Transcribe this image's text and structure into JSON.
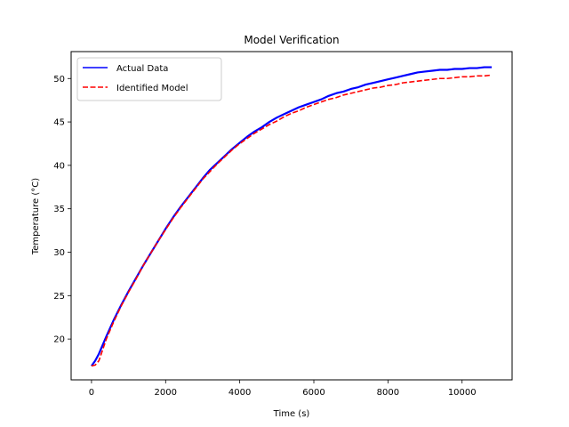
{
  "chart_data": {
    "type": "line",
    "title": "Model Verification",
    "xlabel": "Time (s)",
    "ylabel": "Temperature (°C)",
    "xlim": [
      -550,
      11350
    ],
    "ylim": [
      15.3,
      53.1
    ],
    "xticks": [
      0,
      2000,
      4000,
      6000,
      8000,
      10000
    ],
    "yticks": [
      20,
      25,
      30,
      35,
      40,
      45,
      50
    ],
    "grid": false,
    "legend_position": "top-left",
    "series": [
      {
        "name": "Actual Data",
        "color": "#0000ff",
        "style": "solid",
        "x": [
          0,
          100,
          200,
          400,
          600,
          800,
          1000,
          1200,
          1400,
          1600,
          1800,
          2000,
          2200,
          2400,
          2600,
          2800,
          3000,
          3200,
          3400,
          3600,
          3800,
          4000,
          4200,
          4400,
          4600,
          4800,
          5000,
          5200,
          5400,
          5600,
          5800,
          6000,
          6200,
          6400,
          6600,
          6800,
          7000,
          7200,
          7400,
          7600,
          7800,
          8000,
          8200,
          8400,
          8600,
          8800,
          9000,
          9200,
          9400,
          9600,
          9800,
          10000,
          10200,
          10400,
          10600,
          10800
        ],
        "y": [
          16.9,
          17.5,
          18.3,
          20.3,
          22.2,
          23.9,
          25.5,
          27.0,
          28.5,
          29.9,
          31.3,
          32.7,
          34.0,
          35.2,
          36.3,
          37.4,
          38.5,
          39.5,
          40.3,
          41.1,
          41.9,
          42.6,
          43.3,
          43.9,
          44.4,
          45.0,
          45.5,
          45.9,
          46.3,
          46.7,
          47.0,
          47.3,
          47.6,
          48.0,
          48.3,
          48.5,
          48.8,
          49.0,
          49.3,
          49.5,
          49.7,
          49.9,
          50.1,
          50.3,
          50.5,
          50.7,
          50.8,
          50.9,
          51.0,
          51.0,
          51.1,
          51.1,
          51.2,
          51.2,
          51.3,
          51.3
        ]
      },
      {
        "name": "Identified Model",
        "color": "#ff0000",
        "style": "dashed",
        "x": [
          0,
          100,
          200,
          400,
          600,
          800,
          1000,
          1200,
          1400,
          1600,
          1800,
          2000,
          2200,
          2400,
          2600,
          2800,
          3000,
          3200,
          3400,
          3600,
          3800,
          4000,
          4200,
          4400,
          4600,
          4800,
          5000,
          5200,
          5400,
          5600,
          5800,
          6000,
          6200,
          6400,
          6600,
          6800,
          7000,
          7200,
          7400,
          7600,
          7800,
          8000,
          8200,
          8400,
          8600,
          8800,
          9000,
          9200,
          9400,
          9600,
          9800,
          10000,
          10200,
          10400,
          10600,
          10800
        ],
        "y": [
          16.9,
          17.0,
          17.5,
          20.0,
          22.0,
          23.8,
          25.4,
          26.9,
          28.5,
          29.9,
          31.3,
          32.6,
          33.9,
          35.1,
          36.2,
          37.3,
          38.4,
          39.3,
          40.2,
          41.0,
          41.8,
          42.5,
          43.1,
          43.7,
          44.2,
          44.7,
          45.1,
          45.6,
          46.0,
          46.3,
          46.7,
          47.0,
          47.3,
          47.6,
          47.8,
          48.1,
          48.3,
          48.5,
          48.7,
          48.9,
          49.0,
          49.2,
          49.3,
          49.5,
          49.6,
          49.7,
          49.8,
          49.9,
          50.0,
          50.0,
          50.1,
          50.2,
          50.2,
          50.3,
          50.3,
          50.4
        ]
      }
    ]
  }
}
